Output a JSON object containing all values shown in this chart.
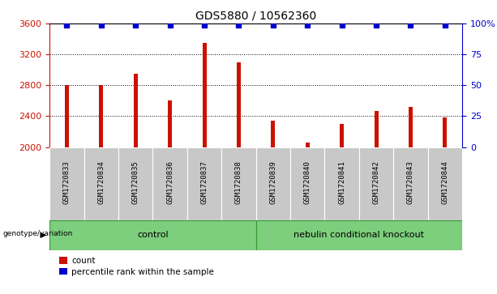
{
  "title": "GDS5880 / 10562360",
  "samples": [
    "GSM1720833",
    "GSM1720834",
    "GSM1720835",
    "GSM1720836",
    "GSM1720837",
    "GSM1720838",
    "GSM1720839",
    "GSM1720840",
    "GSM1720841",
    "GSM1720842",
    "GSM1720843",
    "GSM1720844"
  ],
  "counts": [
    2800,
    2800,
    2950,
    2600,
    3350,
    3100,
    2340,
    2060,
    2300,
    2470,
    2520,
    2380
  ],
  "percentile_ranks": [
    99,
    99,
    99,
    99,
    99,
    99,
    99,
    99,
    99,
    99,
    99,
    99
  ],
  "bar_color": "#cc1100",
  "dot_color": "#0000cc",
  "ylim_left": [
    2000,
    3600
  ],
  "ylim_right": [
    0,
    100
  ],
  "yticks_left": [
    2000,
    2400,
    2800,
    3200,
    3600
  ],
  "yticks_right": [
    0,
    25,
    50,
    75,
    100
  ],
  "ytick_labels_right": [
    "0",
    "25",
    "50",
    "75",
    "100%"
  ],
  "grid_values": [
    2400,
    2800,
    3200
  ],
  "control_count": 6,
  "knockout_count": 6,
  "control_label": "control",
  "knockout_label": "nebulin conditional knockout",
  "genotype_label": "genotype/variation",
  "legend_count_label": "count",
  "legend_percentile_label": "percentile rank within the sample",
  "bar_color_hex": "#cc1100",
  "dot_color_hex": "#0000cc",
  "label_bg": "#c8c8c8",
  "control_bg": "#7dce7d",
  "knockout_bg": "#7dce7d",
  "title_fontsize": 10,
  "tick_fontsize": 8,
  "label_fontsize": 6.5,
  "geno_fontsize": 8
}
